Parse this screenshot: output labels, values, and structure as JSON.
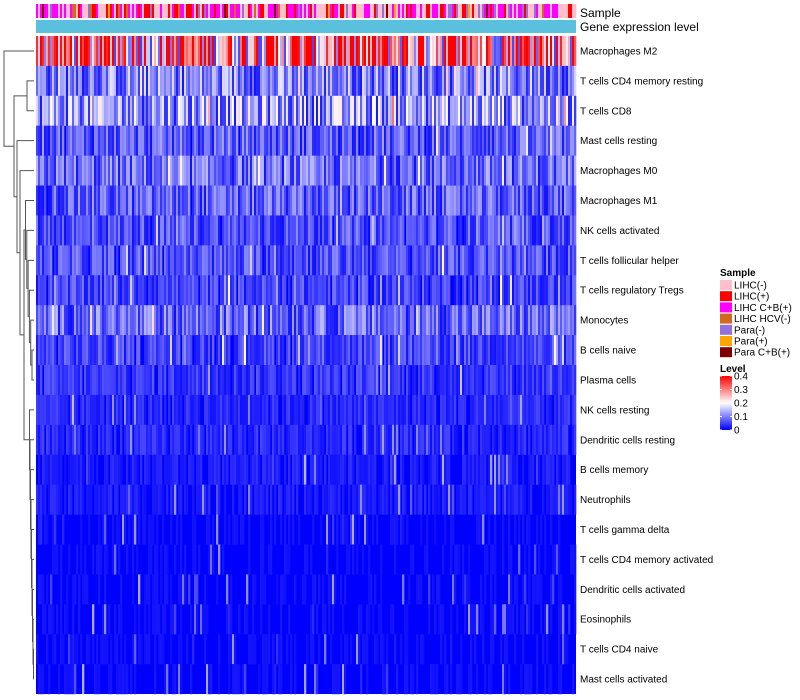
{
  "chart_data": {
    "type": "heatmap",
    "annotation_tracks": [
      "Sample",
      "Gene expression level"
    ],
    "row_labels": [
      "Macrophages M2",
      "T cells CD4 memory resting",
      "T cells CD8",
      "Mast cells resting",
      "Macrophages M0",
      "Macrophages M1",
      "NK cells activated",
      "T cells follicular helper",
      "T cells regulatory  Tregs",
      "Monocytes",
      "B cells naive",
      "Plasma cells",
      "NK cells resting",
      "Dendritic cells resting",
      "B cells memory",
      "Neutrophils",
      "T cells gamma delta",
      "T cells CD4 memory activated",
      "Dendritic cells activated",
      "Eosinophils",
      "T cells CD4 naive",
      "Mast cells activated"
    ],
    "row_mean_levels": [
      0.3,
      0.1,
      0.12,
      0.07,
      0.08,
      0.07,
      0.06,
      0.06,
      0.05,
      0.08,
      0.05,
      0.04,
      0.03,
      0.03,
      0.02,
      0.02,
      0.01,
      0.01,
      0.01,
      0.01,
      0.01,
      0.01
    ],
    "sample_legend": {
      "title": "Sample",
      "entries": [
        {
          "label": "LIHC(-)",
          "color": "#FFC0CB"
        },
        {
          "label": "LIHC(+)",
          "color": "#FF0000"
        },
        {
          "label": "LIHC C+B(+)",
          "color": "#FF00FF"
        },
        {
          "label": "LIHC HCV(-)",
          "color": "#D2691E"
        },
        {
          "label": "Para(-)",
          "color": "#9370DB"
        },
        {
          "label": "Para(+)",
          "color": "#FFA500"
        },
        {
          "label": "Para C+B(+)",
          "color": "#800000"
        }
      ]
    },
    "level_legend": {
      "title": "Level",
      "min": 0,
      "max": 0.4,
      "tick_values": [
        0.4,
        0.3,
        0.2,
        0.1,
        0
      ],
      "tick_labels": [
        "0.4",
        "0.3",
        "0.2",
        "0.1",
        "0"
      ],
      "low_color": "#0000FF",
      "mid_color": "#FFFFFF",
      "high_color": "#FF0000"
    },
    "gene_expression_track_color": "#5BC0DE"
  }
}
